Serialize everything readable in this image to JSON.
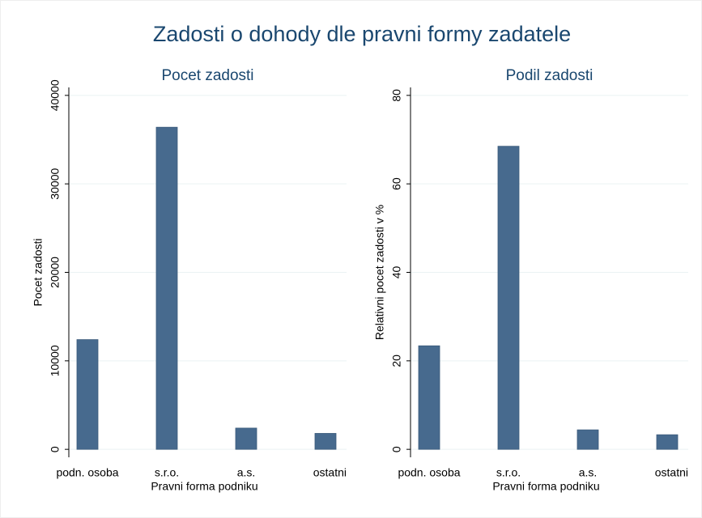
{
  "title": "Zadosti o dohody dle pravni formy zadatele",
  "chart_data": [
    {
      "type": "bar",
      "title": "Pocet zadosti",
      "xlabel": "Pravni forma podniku",
      "ylabel": "Pocet zadosti",
      "categories": [
        "podn. osoba",
        "s.r.o.",
        "a.s.",
        "ostatni"
      ],
      "values": [
        12400,
        36400,
        2400,
        1800
      ],
      "color": "#476a8e",
      "ylim": [
        -900,
        40900
      ],
      "yticks": [
        0,
        10000,
        20000,
        30000,
        40000
      ],
      "grid": true
    },
    {
      "type": "bar",
      "title": "Podil zadosti",
      "xlabel": "Pravni forma podniku",
      "ylabel": "Relativni pocet zadosti v %",
      "categories": [
        "podn. osoba",
        "s.r.o.",
        "a.s.",
        "ostatni"
      ],
      "values": [
        23.4,
        68.5,
        4.4,
        3.3
      ],
      "color": "#476a8e",
      "ylim": [
        -1.8,
        81.8
      ],
      "yticks": [
        0,
        20,
        40,
        60,
        80
      ],
      "grid": true
    }
  ]
}
